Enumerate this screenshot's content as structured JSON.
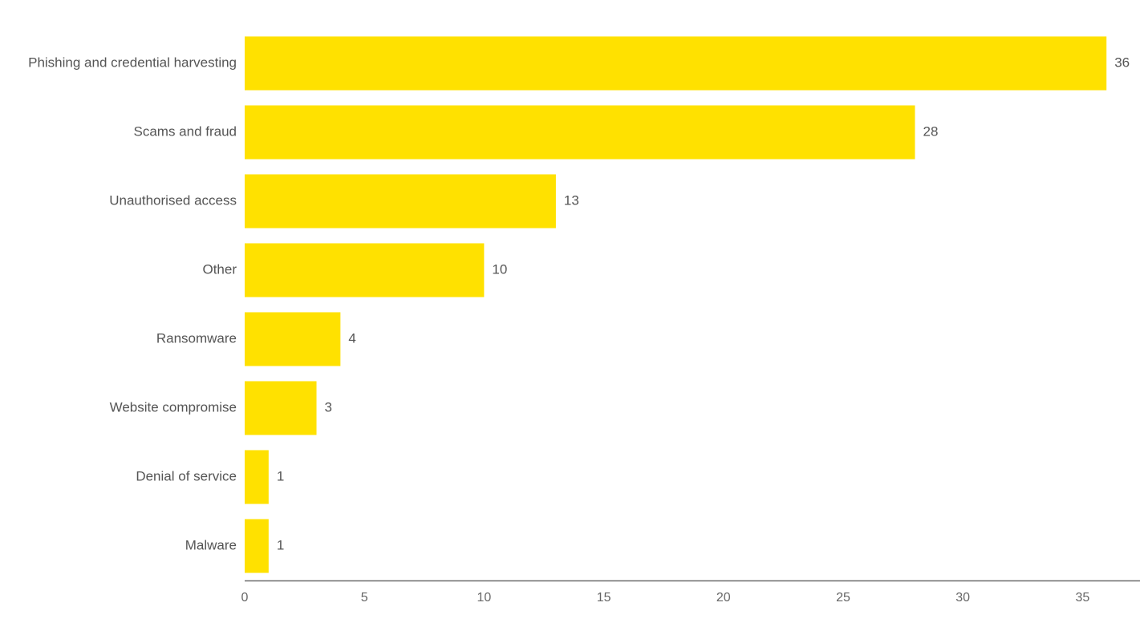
{
  "chart_data": {
    "type": "bar",
    "orientation": "horizontal",
    "title": "",
    "xlabel": "",
    "ylabel": "",
    "categories": [
      "Phishing and credential harvesting",
      "Scams and fraud",
      "Unauthorised access",
      "Other",
      "Ransomware",
      "Website compromise",
      "Denial of service",
      "Malware"
    ],
    "values": [
      36,
      28,
      13,
      10,
      4,
      3,
      1,
      1
    ],
    "xlim": [
      0,
      37.4
    ],
    "xticks": [
      0,
      5,
      10,
      15,
      20,
      25,
      30,
      35
    ],
    "grid": false,
    "legend": "none",
    "bar_color": "#FFE100",
    "axis_color": "#6b6b6b"
  }
}
